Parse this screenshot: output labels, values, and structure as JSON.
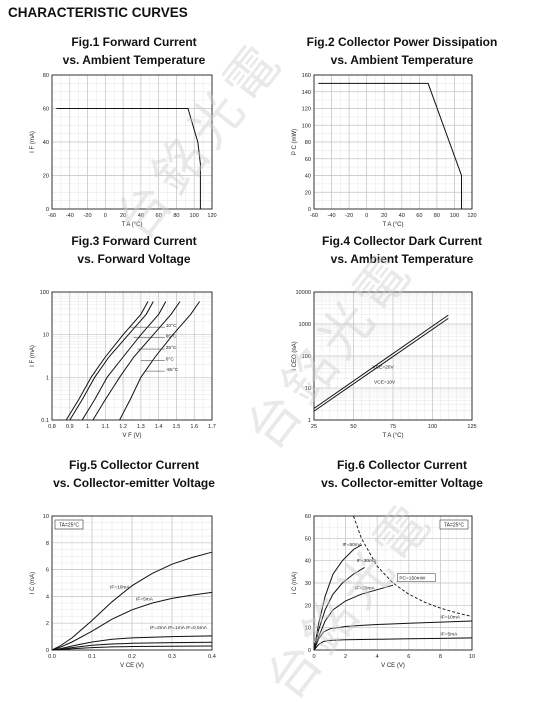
{
  "page": {
    "heading": "CHARACTERISTIC CURVES",
    "watermark": "台銘光電"
  },
  "chart_data": [
    {
      "id": "fig1",
      "type": "line",
      "title_line1": "Fig.1 Forward Current",
      "title_line2": "vs. Ambient Temperature",
      "ylabel": "I F (mA)",
      "xlabel": "T A (°C)",
      "xlim": [
        -60,
        120
      ],
      "ylim": [
        0,
        80
      ],
      "xticks": [
        -60,
        -40,
        -20,
        0,
        20,
        40,
        60,
        80,
        100,
        120
      ],
      "yticks": [
        0,
        20,
        40,
        60,
        80
      ],
      "xminor": 10,
      "yminor": 5,
      "log_x": false,
      "log_y": false,
      "grid": true,
      "series": [
        {
          "x": [
            -55,
            93,
            104,
            107,
            107
          ],
          "y": [
            60,
            60,
            40,
            27,
            0
          ]
        }
      ],
      "annotations": []
    },
    {
      "id": "fig2",
      "type": "line",
      "title_line1": "Fig.2 Collector Power Dissipation",
      "title_line2": "vs. Ambient Temperature",
      "ylabel": "P C (mW)",
      "xlabel": "T A (°C)",
      "xlim": [
        -60,
        120
      ],
      "ylim": [
        0,
        160
      ],
      "xticks": [
        -60,
        -40,
        -20,
        0,
        20,
        40,
        60,
        80,
        100,
        120
      ],
      "yticks": [
        0,
        20,
        40,
        60,
        80,
        100,
        120,
        140,
        160
      ],
      "xminor": 10,
      "yminor": 10,
      "log_x": false,
      "log_y": false,
      "grid": true,
      "series": [
        {
          "x": [
            -55,
            70,
            108,
            108
          ],
          "y": [
            150,
            150,
            40,
            0
          ]
        }
      ],
      "annotations": []
    },
    {
      "id": "fig3",
      "type": "line",
      "title_line1": "Fig.3 Forward Current",
      "title_line2": "vs. Forward Voltage",
      "ylabel": "I F (mA)",
      "xlabel": "V F (V)",
      "xlim": [
        0.8,
        1.7
      ],
      "ylim": [
        0.1,
        100
      ],
      "xticks": [
        0.8,
        0.9,
        1.0,
        1.1,
        1.2,
        1.3,
        1.4,
        1.5,
        1.6,
        1.7
      ],
      "yticks": [
        0.1,
        1,
        10,
        100
      ],
      "xtick_labels": [
        "0.8",
        "0.9",
        "1",
        "1.1",
        "1.2",
        "1.3",
        "1.4",
        "1.5",
        "1.6",
        "1.7"
      ],
      "ytick_labels": [
        "0.1",
        "1",
        "10",
        "100"
      ],
      "xminor": 0.05,
      "log_x": false,
      "log_y": true,
      "grid": true,
      "series": [
        {
          "name": "10°C",
          "x": [
            0.88,
            0.95,
            1.02,
            1.1,
            1.2,
            1.3,
            1.34
          ],
          "y": [
            0.1,
            0.3,
            1,
            3,
            10,
            30,
            60
          ]
        },
        {
          "name": "65°C",
          "x": [
            0.9,
            0.97,
            1.04,
            1.12,
            1.23,
            1.33,
            1.37
          ],
          "y": [
            0.1,
            0.3,
            1,
            3,
            10,
            30,
            60
          ]
        },
        {
          "name": "25°C",
          "x": [
            0.97,
            1.04,
            1.11,
            1.2,
            1.3,
            1.4,
            1.44
          ],
          "y": [
            0.1,
            0.3,
            1,
            3,
            10,
            30,
            60
          ]
        },
        {
          "name": "0°C",
          "x": [
            1.03,
            1.1,
            1.18,
            1.26,
            1.37,
            1.47,
            1.52
          ],
          "y": [
            0.1,
            0.3,
            1,
            3,
            10,
            30,
            60
          ]
        },
        {
          "name": "-55°C",
          "x": [
            1.18,
            1.24,
            1.3,
            1.38,
            1.48,
            1.58,
            1.63
          ],
          "y": [
            0.1,
            0.3,
            1,
            3,
            10,
            30,
            60
          ]
        }
      ],
      "annotations": [
        {
          "text": "10°C",
          "x": 1.44,
          "y": 15,
          "lx": 1.24,
          "ly": 15
        },
        {
          "text": "65°C",
          "x": 1.44,
          "y": 8.5,
          "lx": 1.26,
          "ly": 8.5
        },
        {
          "text": "25°C",
          "x": 1.44,
          "y": 4.6,
          "lx": 1.28,
          "ly": 4.6
        },
        {
          "text": "0°C",
          "x": 1.44,
          "y": 2.5,
          "lx": 1.3,
          "ly": 2.5
        },
        {
          "text": "-55°C",
          "x": 1.44,
          "y": 1.4,
          "lx": 1.32,
          "ly": 1.4
        }
      ]
    },
    {
      "id": "fig4",
      "type": "line",
      "title_line1": "Fig.4 Collector Dark Current",
      "title_line2": "vs. Ambient Temperature",
      "ylabel": "I CEO (nA)",
      "xlabel": "T A (°C)",
      "xlim": [
        25,
        125
      ],
      "ylim": [
        1,
        10000
      ],
      "xticks": [
        25,
        50,
        75,
        100,
        125
      ],
      "yticks": [
        1,
        10,
        100,
        1000,
        10000
      ],
      "ytick_labels": [
        "1",
        "10",
        "100",
        "1000",
        "10000"
      ],
      "xminor": 5,
      "log_x": false,
      "log_y": true,
      "grid": true,
      "series": [
        {
          "name": "VCE=20V",
          "x": [
            25,
            110
          ],
          "y": [
            2.3,
            1900
          ]
        },
        {
          "name": "VCE=10V",
          "x": [
            25,
            110
          ],
          "y": [
            1.9,
            1500
          ]
        }
      ],
      "annotations": [
        {
          "text": "VCE=20V",
          "x": 62,
          "y": 40
        },
        {
          "text": "VCE=10V",
          "x": 63,
          "y": 14
        }
      ]
    },
    {
      "id": "fig5",
      "type": "line",
      "title_line1": "Fig.5 Collector Current",
      "title_line2": "vs. Collector-emitter Voltage",
      "ylabel": "I C (mA)",
      "xlabel": "V CE (V)",
      "xlim": [
        0,
        0.4
      ],
      "ylim": [
        0,
        10
      ],
      "xticks": [
        0,
        0.1,
        0.2,
        0.3,
        0.4
      ],
      "yticks": [
        0,
        2,
        4,
        6,
        8,
        10
      ],
      "xtick_labels": [
        "0.0",
        "0.1",
        "0.2",
        "0.3",
        "0.4"
      ],
      "xminor": 0.025,
      "yminor": 0.5,
      "log_x": false,
      "log_y": false,
      "grid": true,
      "series": [
        {
          "name": "IF=10mA",
          "x": [
            0,
            0.02,
            0.05,
            0.1,
            0.15,
            0.2,
            0.25,
            0.3,
            0.35,
            0.4
          ],
          "y": [
            0,
            0.3,
            0.9,
            2.2,
            3.6,
            4.8,
            5.7,
            6.4,
            6.9,
            7.3
          ]
        },
        {
          "name": "IF=5mA",
          "x": [
            0,
            0.02,
            0.05,
            0.1,
            0.15,
            0.2,
            0.25,
            0.3,
            0.35,
            0.4
          ],
          "y": [
            0,
            0.2,
            0.6,
            1.4,
            2.3,
            3.0,
            3.5,
            3.85,
            4.1,
            4.3
          ]
        },
        {
          "name": "IF=2mA",
          "x": [
            0,
            0.02,
            0.05,
            0.1,
            0.15,
            0.2,
            0.3,
            0.4
          ],
          "y": [
            0,
            0.1,
            0.3,
            0.6,
            0.8,
            0.9,
            1.0,
            1.05
          ]
        },
        {
          "name": "IF=1mA",
          "x": [
            0,
            0.02,
            0.05,
            0.1,
            0.15,
            0.2,
            0.3,
            0.4
          ],
          "y": [
            0,
            0.06,
            0.18,
            0.35,
            0.45,
            0.5,
            0.55,
            0.58
          ]
        },
        {
          "name": "IF=0.5mA",
          "x": [
            0,
            0.02,
            0.05,
            0.1,
            0.15,
            0.2,
            0.3,
            0.4
          ],
          "y": [
            0,
            0.03,
            0.09,
            0.18,
            0.23,
            0.26,
            0.28,
            0.3
          ]
        }
      ],
      "legend_box": "TA=25°C",
      "annotations": [
        {
          "text": "IF=10mA",
          "x": 0.145,
          "y": 4.6
        },
        {
          "text": "IF=5mA",
          "x": 0.21,
          "y": 3.7
        },
        {
          "text": "IF=2mA IF=1mA IF=0.5mA",
          "x": 0.245,
          "y": 1.55
        }
      ]
    },
    {
      "id": "fig6",
      "type": "line",
      "title_line1": "Fig.6 Collector Current",
      "title_line2": "vs. Collector-emitter Voltage",
      "ylabel": "I C (mA)",
      "xlabel": "V CE (V)",
      "xlim": [
        0,
        10
      ],
      "ylim": [
        0,
        60
      ],
      "xticks": [
        0,
        2,
        4,
        6,
        8,
        10
      ],
      "yticks": [
        0,
        10,
        20,
        30,
        40,
        50,
        60
      ],
      "xminor": 0.5,
      "yminor": 5,
      "log_x": false,
      "log_y": false,
      "grid": true,
      "series": [
        {
          "name": "IF=50mA",
          "x": [
            0,
            0.3,
            0.7,
            1.2,
            1.8,
            2.5,
            3.0
          ],
          "y": [
            0,
            12,
            24,
            34,
            40,
            45,
            47
          ]
        },
        {
          "name": "IF=30mA",
          "x": [
            0,
            0.3,
            0.7,
            1.2,
            1.8,
            2.5,
            3.2
          ],
          "y": [
            0,
            9,
            18,
            25,
            30,
            34,
            37
          ]
        },
        {
          "name": "IF=20mA",
          "x": [
            0,
            0.3,
            0.7,
            1.2,
            2.0,
            3.0,
            4.0,
            5.0
          ],
          "y": [
            0,
            6,
            13,
            18,
            22,
            25,
            27,
            29
          ]
        },
        {
          "name": "IF=10mA",
          "x": [
            0,
            0.3,
            0.6,
            1,
            2,
            3,
            4,
            6,
            8,
            10
          ],
          "y": [
            0,
            5,
            8,
            9.5,
            10.5,
            11,
            11.4,
            12,
            12.5,
            13
          ]
        },
        {
          "name": "IF=5mA",
          "x": [
            0,
            0.3,
            0.6,
            1,
            2,
            4,
            6,
            8,
            10
          ],
          "y": [
            0,
            2.5,
            3.8,
            4.3,
            4.6,
            4.8,
            5,
            5.2,
            5.4
          ]
        }
      ],
      "power_curve": {
        "name": "PC=150mW",
        "x": [
          2.5,
          3,
          4,
          5,
          6,
          7,
          8,
          9,
          10
        ],
        "y": [
          60,
          50,
          37.5,
          30,
          25,
          21.4,
          18.75,
          16.7,
          15
        ]
      },
      "legend_box": "TA=25°C",
      "annotations": [
        {
          "text": "IF=50mA",
          "x": 1.8,
          "y": 46.5
        },
        {
          "text": "IF=30mA",
          "x": 2.7,
          "y": 39.5
        },
        {
          "text": "IF=20mA",
          "x": 2.6,
          "y": 27
        },
        {
          "text": "PC=150mW",
          "x": 5.4,
          "y": 31.5
        },
        {
          "text": "IF=10mA",
          "x": 8.0,
          "y": 14.2
        },
        {
          "text": "IF=5mA",
          "x": 8.0,
          "y": 6.6
        }
      ]
    }
  ]
}
